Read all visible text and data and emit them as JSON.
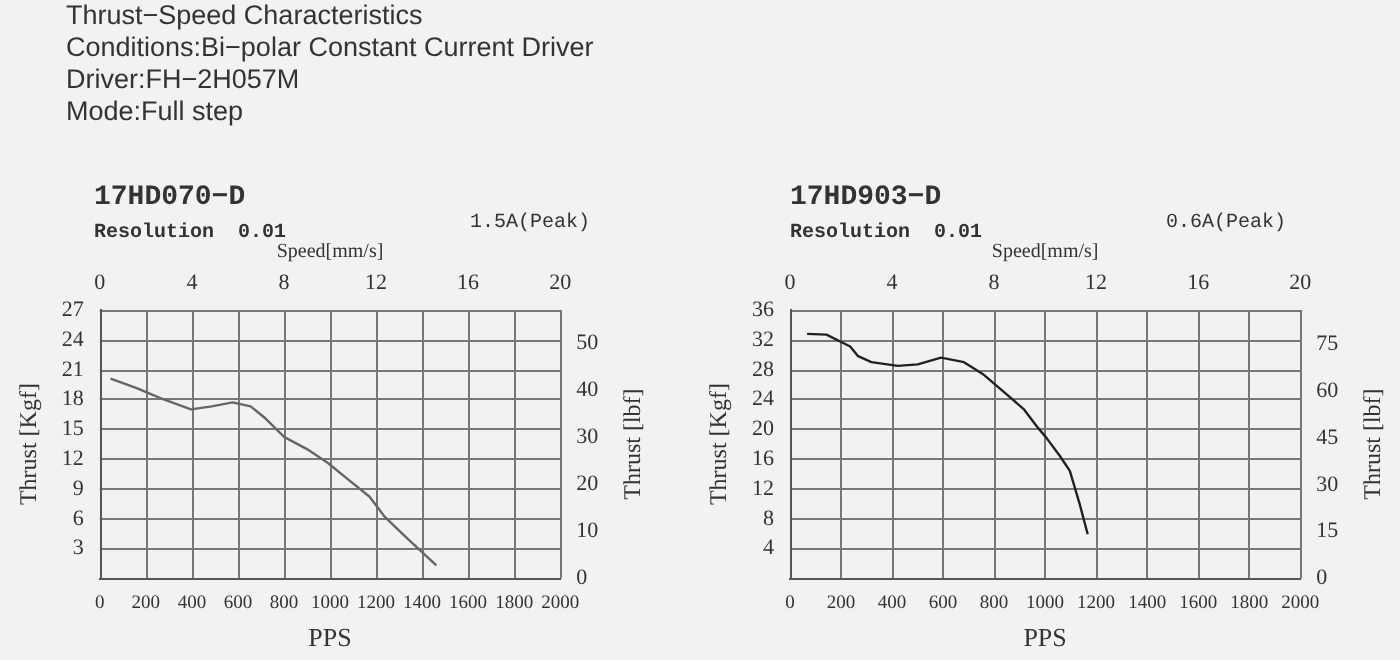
{
  "chart_data": [
    {
      "type": "other",
      "title": "Thrust−Speed Characteristics",
      "annotations": [
        "Conditions:Bi−polar Constant Current Driver",
        "Driver:FH−2H057M",
        "Mode:Full step"
      ]
    },
    {
      "type": "line",
      "title": "17HD070−D",
      "subtitle": "Resolution  0.01",
      "annotations": [
        "1.5A(Peak)"
      ],
      "xlabel": "PPS",
      "ylabel": "Thrust [Kgf]",
      "y2label": "Thrust [lbf]",
      "x2label": "Speed[mm/s]",
      "x": [
        47,
        163,
        266,
        396,
        486,
        577,
        655,
        719,
        802,
        900,
        991,
        1081,
        1172,
        1237,
        1340,
        1462
      ],
      "series": [
        {
          "color": "#666666",
          "values": [
            20.1,
            19.1,
            18.1,
            17.0,
            17.3,
            17.7,
            17.3,
            16.1,
            14.2,
            13.0,
            11.6,
            9.9,
            8.2,
            6.2,
            3.9,
            1.3
          ]
        }
      ],
      "xlim": [
        0,
        2000
      ],
      "xticks": [
        0,
        200,
        400,
        600,
        800,
        1000,
        1200,
        1400,
        1600,
        1800,
        2000
      ],
      "ylim": [
        0,
        27
      ],
      "yticks": [
        {
          "value": 0,
          "label": null
        },
        3,
        6,
        9,
        12,
        15,
        18,
        21,
        24,
        27
      ],
      "y2lim": [
        0,
        57
      ],
      "y2ticks": [
        0,
        10,
        20,
        30,
        40,
        50
      ],
      "x2lim": [
        0,
        20
      ],
      "x2ticks": [
        0,
        4,
        8,
        12,
        16,
        20
      ],
      "grid": true
    },
    {
      "type": "line",
      "title": "17HD903−D",
      "subtitle": "Resolution  0.01",
      "annotations": [
        "0.6A(Peak)"
      ],
      "xlabel": "PPS",
      "ylabel": "Thrust [Kgf]",
      "y2label": "Thrust [lbf]",
      "x2label": "Speed[mm/s]",
      "x": [
        67,
        143,
        236,
        267,
        319,
        423,
        501,
        592,
        682,
        760,
        838,
        916,
        967,
        1006,
        1058,
        1097,
        1136,
        1167
      ],
      "series": [
        {
          "color": "#222222",
          "values": [
            32.8,
            32.7,
            31.1,
            29.8,
            29.0,
            28.5,
            28.7,
            29.6,
            29.0,
            27.3,
            25.0,
            22.7,
            20.4,
            18.8,
            16.4,
            14.4,
            9.9,
            5.9
          ]
        }
      ],
      "xlim": [
        0,
        2000
      ],
      "xticks": [
        0,
        200,
        400,
        600,
        800,
        1000,
        1200,
        1400,
        1600,
        1800,
        2000
      ],
      "ylim": [
        0,
        36
      ],
      "yticks": [
        {
          "value": 0,
          "label": null
        },
        4,
        8,
        12,
        16,
        20,
        24,
        28,
        32,
        36
      ],
      "y2lim": [
        0,
        86
      ],
      "y2ticks": [
        0,
        15,
        30,
        45,
        60,
        75
      ],
      "x2lim": [
        0,
        20
      ],
      "x2ticks": [
        0,
        4,
        8,
        12,
        16,
        20
      ],
      "grid": true
    }
  ]
}
